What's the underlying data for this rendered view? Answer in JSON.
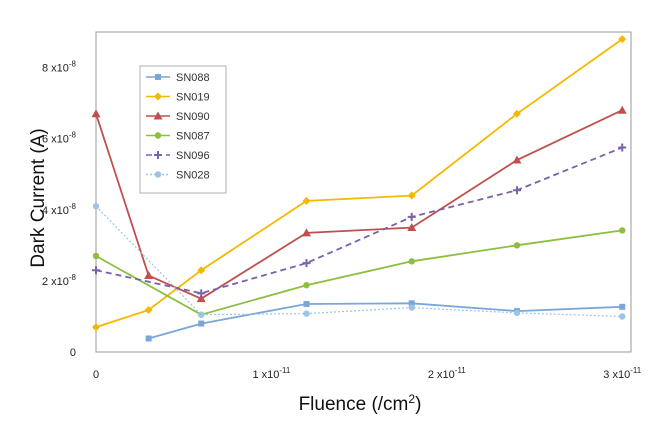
{
  "chart_data": {
    "type": "line",
    "title": "",
    "xlabel": "Fluence (/cm",
    "xlabel_sup": "2",
    "xlabel_tail": ")",
    "ylabel": "Dark Current (A)",
    "xlim": [
      0,
      3.05e-11
    ],
    "ylim": [
      0,
      9e-08
    ],
    "x_ticks": [
      {
        "value": 0,
        "base": "0",
        "exp": ""
      },
      {
        "value": 1e-11,
        "base": "1 x10",
        "exp": "-11"
      },
      {
        "value": 2e-11,
        "base": "2 x10",
        "exp": "-11"
      },
      {
        "value": 3e-11,
        "base": "3 x10",
        "exp": "-11"
      }
    ],
    "y_ticks": [
      {
        "value": 0,
        "base": "0",
        "exp": ""
      },
      {
        "value": 2e-08,
        "base": "2 x10",
        "exp": "-8"
      },
      {
        "value": 4e-08,
        "base": "4 x10",
        "exp": "-8"
      },
      {
        "value": 6e-08,
        "base": "6 x10",
        "exp": "-8"
      },
      {
        "value": 8e-08,
        "base": "8 x10",
        "exp": "-8"
      }
    ],
    "grid": false,
    "legend_position": "top-left",
    "series": [
      {
        "name": "SN088",
        "color": "#7aa6d8",
        "marker": "square",
        "dash": "solid",
        "x": [
          3e-12,
          6e-12,
          1.2e-11,
          1.8e-11,
          2.4e-11,
          3e-11
        ],
        "y": [
          3.8e-09,
          8e-09,
          1.35e-08,
          1.37e-08,
          1.15e-08,
          1.27e-08
        ]
      },
      {
        "name": "SN019",
        "color": "#f5b800",
        "marker": "diamond",
        "dash": "solid",
        "x": [
          0,
          3e-12,
          6e-12,
          1.2e-11,
          1.8e-11,
          2.4e-11,
          3e-11
        ],
        "y": [
          7e-09,
          1.18e-08,
          2.3e-08,
          4.25e-08,
          4.4e-08,
          6.7e-08,
          8.8e-08
        ]
      },
      {
        "name": "SN090",
        "color": "#c0504d",
        "marker": "triangle",
        "dash": "solid",
        "x": [
          0,
          3e-12,
          6e-12,
          1.2e-11,
          1.8e-11,
          2.4e-11,
          3e-11
        ],
        "y": [
          6.7e-08,
          2.15e-08,
          1.5e-08,
          3.35e-08,
          3.5e-08,
          5.4e-08,
          6.8e-08
        ]
      },
      {
        "name": "SN087",
        "color": "#8cbf3f",
        "marker": "circle",
        "dash": "solid",
        "x": [
          0,
          6e-12,
          1.2e-11,
          1.8e-11,
          2.4e-11,
          3e-11
        ],
        "y": [
          2.7e-08,
          1.05e-08,
          1.88e-08,
          2.55e-08,
          3e-08,
          3.42e-08
        ]
      },
      {
        "name": "SN096",
        "color": "#7a62a8",
        "marker": "plus",
        "dash": "dashed",
        "x": [
          0,
          6e-12,
          1.2e-11,
          1.8e-11,
          2.4e-11,
          3e-11
        ],
        "y": [
          2.3e-08,
          1.65e-08,
          2.5e-08,
          3.8e-08,
          4.55e-08,
          5.75e-08
        ]
      },
      {
        "name": "SN028",
        "color": "#9dc3e6",
        "marker": "circle",
        "dash": "dotted",
        "x": [
          0,
          6e-12,
          1.2e-11,
          1.8e-11,
          2.4e-11,
          3e-11
        ],
        "y": [
          4.1e-08,
          1.05e-08,
          1.08e-08,
          1.25e-08,
          1.1e-08,
          1e-08
        ]
      }
    ]
  }
}
